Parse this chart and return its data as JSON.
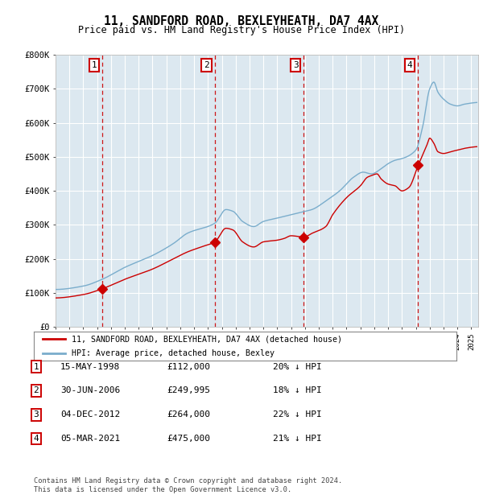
{
  "title": "11, SANDFORD ROAD, BEXLEYHEATH, DA7 4AX",
  "subtitle": "Price paid vs. HM Land Registry's House Price Index (HPI)",
  "ylim": [
    0,
    800000
  ],
  "xlim_start": 1995.0,
  "xlim_end": 2025.5,
  "background_color": "#dce8f0",
  "grid_color": "#ffffff",
  "red_line_color": "#cc0000",
  "blue_line_color": "#7aadcc",
  "dashed_line_color": "#cc0000",
  "sale_dates": [
    1998.37,
    2006.5,
    2012.92,
    2021.17
  ],
  "sale_prices": [
    112000,
    249995,
    264000,
    475000
  ],
  "sale_labels": [
    "1",
    "2",
    "3",
    "4"
  ],
  "legend_label_red": "11, SANDFORD ROAD, BEXLEYHEATH, DA7 4AX (detached house)",
  "legend_label_blue": "HPI: Average price, detached house, Bexley",
  "table_entries": [
    {
      "label": "1",
      "date": "15-MAY-1998",
      "price": "£112,000",
      "hpi": "20% ↓ HPI"
    },
    {
      "label": "2",
      "date": "30-JUN-2006",
      "price": "£249,995",
      "hpi": "18% ↓ HPI"
    },
    {
      "label": "3",
      "date": "04-DEC-2012",
      "price": "£264,000",
      "hpi": "22% ↓ HPI"
    },
    {
      "label": "4",
      "date": "05-MAR-2021",
      "price": "£475,000",
      "hpi": "21% ↓ HPI"
    }
  ],
  "footer": "Contains HM Land Registry data © Crown copyright and database right 2024.\nThis data is licensed under the Open Government Licence v3.0.",
  "font_family": "DejaVu Sans Mono"
}
